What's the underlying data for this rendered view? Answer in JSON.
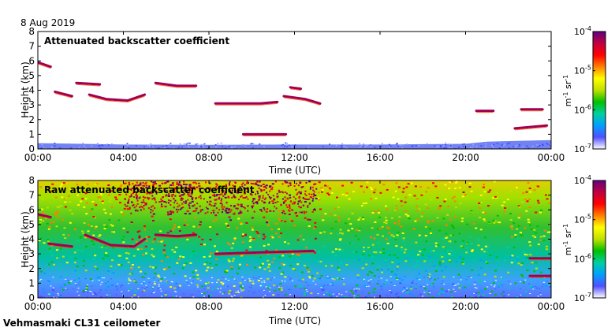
{
  "header": {
    "date": "8 Aug 2019"
  },
  "footer": {
    "instrument": "Vehmasmaki CL31 ceilometer"
  },
  "colorbar": {
    "ticks": [
      {
        "exp": "-4",
        "value": 0.0001
      },
      {
        "exp": "-5",
        "value": 1e-05
      },
      {
        "exp": "-6",
        "value": 1e-06
      },
      {
        "exp": "-7",
        "value": 1e-07
      }
    ],
    "unit_base_1": "m",
    "unit_exp_1": "-1",
    "unit_base_2": " sr",
    "unit_exp_2": "-1",
    "stops": [
      "#ffffff",
      "#5050ff",
      "#00a0ff",
      "#00d0a0",
      "#00c000",
      "#c0e000",
      "#ffff00",
      "#ff8000",
      "#ff0000",
      "#c00040",
      "#600080"
    ]
  },
  "chart_data": [
    {
      "type": "heatmap",
      "title": "Attenuated backscatter coefficient",
      "xlabel": "Time (UTC)",
      "ylabel": "Height (km)",
      "xlim": [
        0,
        24
      ],
      "ylim": [
        0,
        8
      ],
      "xticks": [
        "00:00",
        "04:00",
        "08:00",
        "12:00",
        "16:00",
        "20:00",
        "00:00"
      ],
      "yticks": [
        "0",
        "1",
        "2",
        "3",
        "4",
        "5",
        "6",
        "7",
        "8"
      ],
      "colorbar_range": [
        1e-07,
        0.0001
      ],
      "features": {
        "boundary_layer": {
          "time": [
            0,
            4,
            8,
            12,
            16,
            20,
            21,
            24
          ],
          "height": [
            0.4,
            0.3,
            0.28,
            0.3,
            0.3,
            0.35,
            0.5,
            0.6
          ]
        },
        "aerosol_layers": [
          {
            "time": [
              0,
              0.6
            ],
            "height": [
              5.9,
              5.6
            ]
          },
          {
            "time": [
              0.8,
              1.6
            ],
            "height": [
              3.9,
              3.6
            ]
          },
          {
            "time": [
              2.4,
              3.2,
              4.2,
              5.0
            ],
            "height": [
              3.7,
              3.4,
              3.3,
              3.7
            ]
          },
          {
            "time": [
              1.8,
              2.9
            ],
            "height": [
              4.5,
              4.4
            ]
          },
          {
            "time": [
              5.5,
              6.5,
              7.4
            ],
            "height": [
              4.5,
              4.3,
              4.3
            ]
          },
          {
            "time": [
              8.3,
              10.4,
              11.2
            ],
            "height": [
              3.1,
              3.1,
              3.2
            ]
          },
          {
            "time": [
              11.5,
              12.5,
              13.2
            ],
            "height": [
              3.6,
              3.4,
              3.1
            ]
          },
          {
            "time": [
              11.8,
              12.3
            ],
            "height": [
              4.2,
              4.1
            ]
          },
          {
            "time": [
              9.6,
              11.6
            ],
            "height": [
              1.0,
              1.0
            ]
          },
          {
            "time": [
              20.5,
              21.3
            ],
            "height": [
              2.6,
              2.6
            ]
          },
          {
            "time": [
              22.6,
              23.6
            ],
            "height": [
              2.7,
              2.7
            ]
          },
          {
            "time": [
              22.3,
              23.8
            ],
            "height": [
              1.4,
              1.6
            ]
          }
        ]
      }
    },
    {
      "type": "heatmap",
      "title": "Raw attenuated backscatter coefficient",
      "xlabel": "Time (UTC)",
      "ylabel": "Height (km)",
      "xlim": [
        0,
        24
      ],
      "ylim": [
        0,
        8
      ],
      "xticks": [
        "00:00",
        "04:00",
        "08:00",
        "12:00",
        "16:00",
        "20:00",
        "00:00"
      ],
      "yticks": [
        "0",
        "1",
        "2",
        "3",
        "4",
        "5",
        "6",
        "7",
        "8"
      ],
      "colorbar_range": [
        1e-07,
        0.0001
      ],
      "features": {
        "noisy_period": [
          4,
          13
        ],
        "aerosol_layers": [
          {
            "time": [
              0,
              0.6
            ],
            "height": [
              5.7,
              5.5
            ]
          },
          {
            "time": [
              0.5,
              1.6
            ],
            "height": [
              3.7,
              3.5
            ]
          },
          {
            "time": [
              2.2,
              3.4,
              4.5,
              5.0
            ],
            "height": [
              4.3,
              3.6,
              3.5,
              4.0
            ]
          },
          {
            "time": [
              5.5,
              6.5,
              7.4
            ],
            "height": [
              4.3,
              4.2,
              4.3
            ]
          },
          {
            "time": [
              8.3,
              10.4,
              12.9
            ],
            "height": [
              3.0,
              3.1,
              3.2
            ]
          },
          {
            "time": [
              23.0,
              24.0
            ],
            "height": [
              2.7,
              2.7
            ]
          },
          {
            "time": [
              23.0,
              24.0
            ],
            "height": [
              1.5,
              1.5
            ]
          }
        ]
      }
    }
  ]
}
